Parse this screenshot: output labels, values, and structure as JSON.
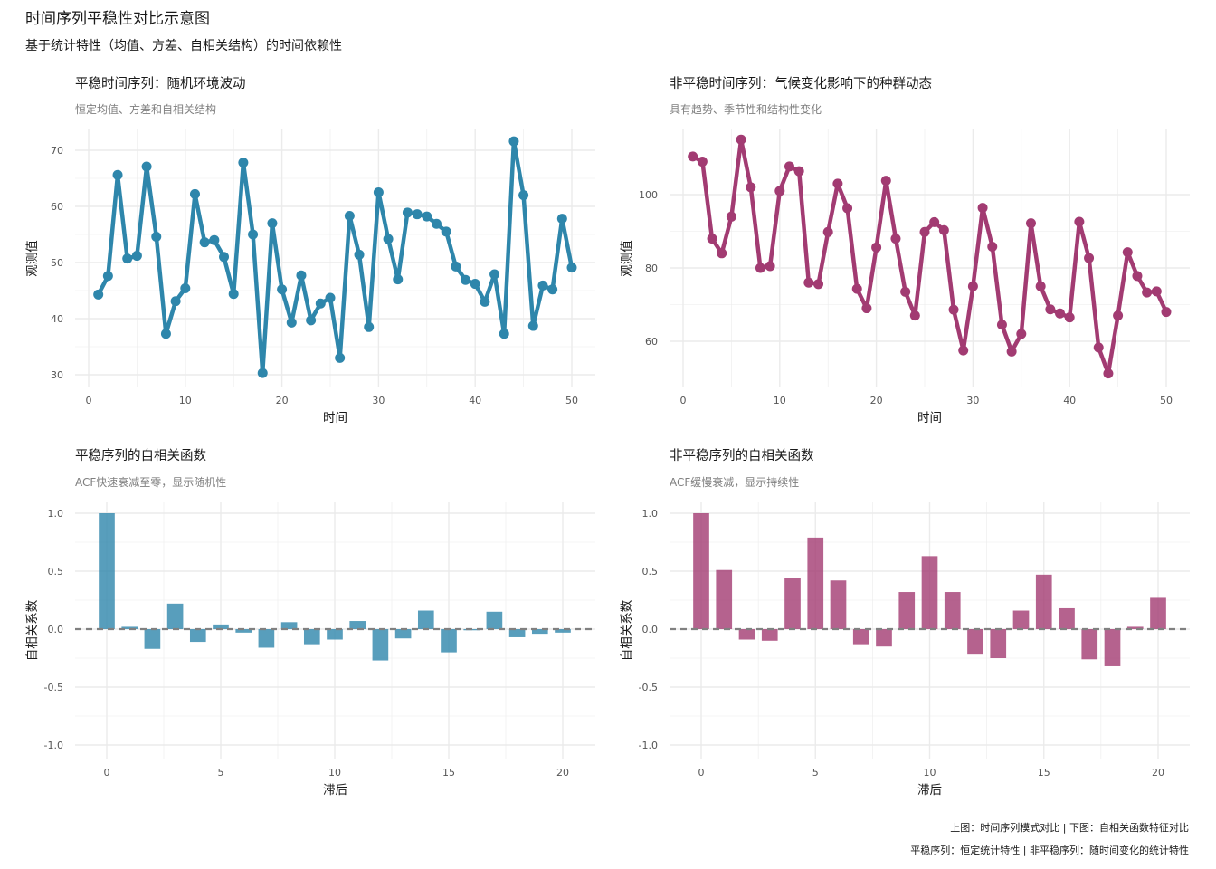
{
  "title": "时间序列平稳性对比示意图",
  "subtitle": "基于统计特性（均值、方差、自相关结构）的时间依赖性",
  "caption": [
    "上图：时间序列模式对比 | 下图：自相关函数特征对比",
    "平稳序列：恒定统计特性 | 非平稳序列：随时间变化的统计特性"
  ],
  "colors": {
    "stationary": "#2E86AB",
    "nonstationary": "#A23B72",
    "grid": "#ebebeb",
    "zero_line": "#808080"
  },
  "chart_data": [
    {
      "type": "line",
      "title": "平稳时间序列：随机环境波动",
      "subtitle": "恒定均值、方差和自相关结构",
      "xlabel": "时间",
      "ylabel": "观测值",
      "xlim": [
        0,
        50
      ],
      "ylim": [
        30,
        70
      ],
      "xticks": [
        0,
        10,
        20,
        30,
        40,
        50
      ],
      "yticks": [
        30,
        40,
        50,
        60,
        70
      ],
      "color": "#2E86AB",
      "x": [
        1,
        2,
        3,
        4,
        5,
        6,
        7,
        8,
        9,
        10,
        11,
        12,
        13,
        14,
        15,
        16,
        17,
        18,
        19,
        20,
        21,
        22,
        23,
        24,
        25,
        26,
        27,
        28,
        29,
        30,
        31,
        32,
        33,
        34,
        35,
        36,
        37,
        38,
        39,
        40,
        41,
        42,
        43,
        44,
        45,
        46,
        47,
        48,
        49,
        50
      ],
      "y": [
        44.3,
        47.6,
        65.6,
        50.7,
        51.2,
        67.1,
        54.6,
        37.3,
        43.1,
        45.4,
        62.2,
        53.6,
        54.0,
        51.0,
        44.4,
        67.8,
        55.0,
        30.3,
        57.0,
        45.2,
        39.3,
        47.7,
        39.7,
        42.7,
        43.7,
        33.0,
        58.3,
        51.4,
        38.5,
        62.5,
        54.2,
        47.0,
        58.9,
        58.6,
        58.2,
        56.9,
        55.5,
        49.3,
        46.9,
        46.2,
        43.0,
        47.9,
        37.3,
        71.6,
        62.0,
        38.7,
        45.9,
        45.2,
        57.8,
        49.1
      ]
    },
    {
      "type": "line",
      "title": "非平稳时间序列：气候变化影响下的种群动态",
      "subtitle": "具有趋势、季节性和结构性变化",
      "xlabel": "时间",
      "ylabel": "观测值",
      "xlim": [
        0,
        50
      ],
      "ylim": [
        60,
        100
      ],
      "xticks": [
        0,
        10,
        20,
        30,
        40,
        50
      ],
      "yticks": [
        60,
        80,
        100
      ],
      "color": "#A23B72",
      "x": [
        1,
        2,
        3,
        4,
        5,
        6,
        7,
        8,
        9,
        10,
        11,
        12,
        13,
        14,
        15,
        16,
        17,
        18,
        19,
        20,
        21,
        22,
        23,
        24,
        25,
        26,
        27,
        28,
        29,
        30,
        31,
        32,
        33,
        34,
        35,
        36,
        37,
        38,
        39,
        40,
        41,
        42,
        43,
        44,
        45,
        46,
        47,
        48,
        49,
        50
      ],
      "y": [
        110.4,
        109.0,
        88.0,
        84.0,
        94.0,
        115.0,
        102.0,
        80.0,
        80.5,
        101.0,
        107.7,
        106.4,
        76.0,
        75.6,
        89.8,
        103.0,
        96.3,
        74.3,
        69.0,
        85.6,
        103.8,
        88.0,
        73.5,
        67.0,
        89.8,
        92.5,
        90.3,
        68.6,
        57.5,
        75.0,
        96.4,
        85.8,
        64.5,
        57.2,
        62.0,
        92.2,
        75.0,
        68.7,
        67.6,
        66.5,
        92.6,
        82.7,
        58.3,
        51.2,
        67.0,
        84.3,
        77.8,
        73.3,
        73.6,
        68.0
      ]
    },
    {
      "type": "bar",
      "title": "平稳序列的自相关函数",
      "subtitle": "ACF快速衰减至零，显示随机性",
      "xlabel": "滞后",
      "ylabel": "自相关系数",
      "xlim": [
        0,
        20
      ],
      "ylim": [
        -1.0,
        1.0
      ],
      "xticks": [
        0,
        5,
        10,
        15,
        20
      ],
      "yticks": [
        "-1.0",
        "-0.5",
        "0.0",
        "0.5",
        "1.0"
      ],
      "reference_line": 0,
      "color": "#2E86AB",
      "lags": [
        0,
        1,
        2,
        3,
        4,
        5,
        6,
        7,
        8,
        9,
        10,
        11,
        12,
        13,
        14,
        15,
        16,
        17,
        18,
        19,
        20
      ],
      "values": [
        1.0,
        0.02,
        -0.17,
        0.22,
        -0.11,
        0.04,
        -0.03,
        -0.16,
        0.06,
        -0.13,
        -0.09,
        0.07,
        -0.27,
        -0.08,
        0.16,
        -0.2,
        -0.01,
        0.15,
        -0.07,
        -0.04,
        -0.03
      ]
    },
    {
      "type": "bar",
      "title": "非平稳序列的自相关函数",
      "subtitle": "ACF缓慢衰减，显示持续性",
      "xlabel": "滞后",
      "ylabel": "自相关系数",
      "xlim": [
        0,
        20
      ],
      "ylim": [
        -1.0,
        1.0
      ],
      "xticks": [
        0,
        5,
        10,
        15,
        20
      ],
      "yticks": [
        "-1.0",
        "-0.5",
        "0.0",
        "0.5",
        "1.0"
      ],
      "reference_line": 0,
      "color": "#A23B72",
      "lags": [
        0,
        1,
        2,
        3,
        4,
        5,
        6,
        7,
        8,
        9,
        10,
        11,
        12,
        13,
        14,
        15,
        16,
        17,
        18,
        19,
        20
      ],
      "values": [
        1.0,
        0.51,
        -0.09,
        -0.1,
        0.44,
        0.79,
        0.42,
        -0.13,
        -0.15,
        0.32,
        0.63,
        0.32,
        -0.22,
        -0.25,
        0.16,
        0.47,
        0.18,
        -0.26,
        -0.32,
        0.02,
        0.27
      ]
    }
  ]
}
